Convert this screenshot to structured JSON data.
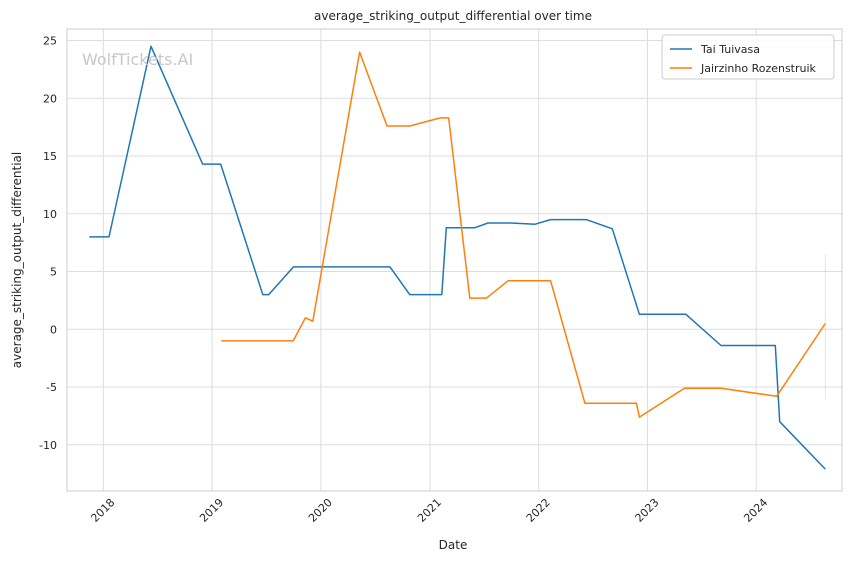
{
  "chart_data": {
    "type": "line",
    "title": "average_striking_output_differential over time",
    "xlabel": "Date",
    "ylabel": "average_striking_output_differential",
    "watermark": "WolfTickets.AI",
    "xlim": [
      "2017-09-01",
      "2024-10-15"
    ],
    "ylim": [
      -14,
      26
    ],
    "y_ticks": [
      -10,
      -5,
      0,
      5,
      10,
      15,
      20,
      25
    ],
    "x_ticks": [
      {
        "label": "2018",
        "date": "2018-01-01"
      },
      {
        "label": "2019",
        "date": "2019-01-01"
      },
      {
        "label": "2020",
        "date": "2020-01-01"
      },
      {
        "label": "2021",
        "date": "2021-01-01"
      },
      {
        "label": "2022",
        "date": "2022-01-01"
      },
      {
        "label": "2023",
        "date": "2023-01-01"
      },
      {
        "label": "2024",
        "date": "2024-01-01"
      }
    ],
    "grid": true,
    "legend_position": "top-right",
    "series": [
      {
        "name": "Tai Tuivasa",
        "color": "#1f77b4",
        "points": [
          [
            "2017-11-15",
            8.0
          ],
          [
            "2018-01-20",
            8.0
          ],
          [
            "2018-06-10",
            24.5
          ],
          [
            "2018-11-30",
            14.3
          ],
          [
            "2019-01-30",
            14.3
          ],
          [
            "2019-06-20",
            3.0
          ],
          [
            "2019-07-10",
            3.0
          ],
          [
            "2019-10-01",
            5.4
          ],
          [
            "2020-08-20",
            5.4
          ],
          [
            "2020-10-25",
            3.0
          ],
          [
            "2021-02-10",
            3.0
          ],
          [
            "2021-02-25",
            8.8
          ],
          [
            "2021-06-01",
            8.8
          ],
          [
            "2021-07-15",
            9.2
          ],
          [
            "2021-09-30",
            9.2
          ],
          [
            "2021-12-20",
            9.1
          ],
          [
            "2022-02-10",
            9.5
          ],
          [
            "2022-06-10",
            9.5
          ],
          [
            "2022-09-05",
            8.7
          ],
          [
            "2022-12-05",
            1.3
          ],
          [
            "2023-05-10",
            1.3
          ],
          [
            "2023-09-05",
            -1.4
          ],
          [
            "2024-03-05",
            -1.4
          ],
          [
            "2024-03-20",
            -8.0
          ],
          [
            "2024-08-20",
            -12.1
          ]
        ]
      },
      {
        "name": "Jairzinho Rozenstruik",
        "color": "#ff7f0e",
        "points": [
          [
            "2019-02-01",
            -1.0
          ],
          [
            "2019-09-30",
            -1.0
          ],
          [
            "2019-11-10",
            1.0
          ],
          [
            "2019-12-05",
            0.7
          ],
          [
            "2020-05-10",
            24.0
          ],
          [
            "2020-08-10",
            17.6
          ],
          [
            "2020-10-25",
            17.6
          ],
          [
            "2021-02-05",
            18.3
          ],
          [
            "2021-03-05",
            18.3
          ],
          [
            "2021-05-15",
            2.7
          ],
          [
            "2021-07-10",
            2.7
          ],
          [
            "2021-09-20",
            4.2
          ],
          [
            "2022-02-10",
            4.2
          ],
          [
            "2022-06-05",
            -6.4
          ],
          [
            "2022-11-25",
            -6.4
          ],
          [
            "2022-12-05",
            -7.6
          ],
          [
            "2023-05-05",
            -5.1
          ],
          [
            "2023-09-05",
            -5.1
          ],
          [
            "2024-03-10",
            -5.8
          ],
          [
            "2024-08-20",
            0.5
          ]
        ]
      }
    ]
  }
}
